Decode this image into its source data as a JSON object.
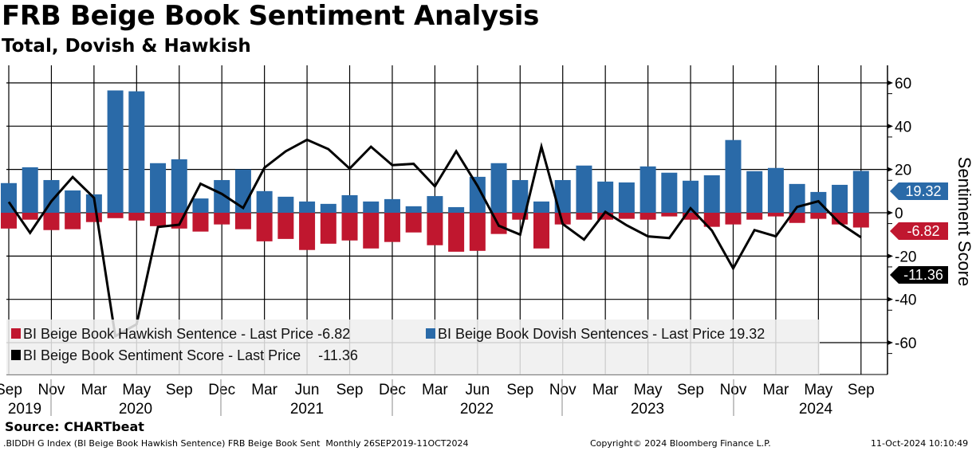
{
  "header": {
    "title": "FRB Beige Book Sentiment Analysis",
    "subtitle": "Total, Dovish & Hawkish"
  },
  "chart_data": {
    "type": "bar",
    "title": "FRB Beige Book Sentiment Analysis",
    "subtitle": "Total, Dovish & Hawkish",
    "ylabel": "Sentiment Score",
    "ylim": [
      -75,
      68
    ],
    "yticks": [
      60,
      40,
      20,
      0,
      -20,
      -40,
      -60
    ],
    "grid": true,
    "legend_position": "bottom-left",
    "x_tick_labels": [
      "Sep",
      "Nov",
      "Mar",
      "May",
      "Sep",
      "Dec",
      "Mar",
      "Jun",
      "Sep",
      "Dec",
      "Mar",
      "Jun",
      "Sep",
      "Nov",
      "Mar",
      "May",
      "Sep",
      "Nov",
      "Mar",
      "May",
      "Sep"
    ],
    "year_labels": [
      "2019",
      "2020",
      "2021",
      "2022",
      "2023",
      "2024"
    ],
    "series": [
      {
        "name": "BI Beige Book Hawkish Sentence - Last Price -6.82",
        "type": "bar",
        "color": "#c0172f",
        "last": "-6.82",
        "values": [
          -7.3,
          -3.2,
          -8.0,
          -7.6,
          -4.3,
          -2.5,
          -3.6,
          -6.2,
          -7.3,
          -8.7,
          -5.4,
          -7.6,
          -13.2,
          -12.1,
          -17.2,
          -14.3,
          -12.8,
          -16.5,
          -13.5,
          -9.1,
          -15.0,
          -18.0,
          -17.6,
          -9.8,
          -3.2,
          -16.5,
          -5.4,
          -3.2,
          -3.2,
          -2.8,
          -3.2,
          -1.7,
          -3.2,
          -6.5,
          -5.4,
          -3.2,
          -1.7,
          -4.7,
          -2.8,
          -5.4,
          -6.82
        ]
      },
      {
        "name": "BI Beige Book Dovish Sentences - Last Price 19.32",
        "type": "bar",
        "color": "#2a6aa8",
        "last": "19.32",
        "values": [
          13.7,
          21.0,
          15.1,
          10.3,
          8.5,
          56.5,
          56.1,
          22.9,
          24.7,
          6.6,
          15.1,
          20.0,
          10.0,
          7.4,
          5.2,
          4.1,
          8.1,
          5.2,
          6.3,
          3.0,
          7.7,
          2.6,
          16.6,
          22.9,
          15.1,
          5.2,
          15.1,
          21.8,
          14.4,
          14.0,
          21.4,
          18.5,
          14.8,
          17.3,
          33.6,
          19.2,
          20.7,
          13.3,
          9.6,
          12.9,
          19.32
        ]
      },
      {
        "name": "BI Beige Book Sentiment Score - Last Price",
        "type": "line",
        "color": "#000000",
        "last": "-11.36",
        "values": [
          5.0,
          -9.3,
          5.3,
          16.5,
          6.9,
          -57.0,
          -51.5,
          -6.6,
          -5.5,
          13.4,
          8.7,
          2.2,
          20.8,
          28.4,
          33.7,
          29.4,
          20.4,
          30.5,
          22.0,
          22.6,
          12.2,
          28.4,
          12.4,
          -6.0,
          -10.1,
          30.5,
          -5.2,
          -12.4,
          0.4,
          -5.8,
          -10.9,
          -11.7,
          2.1,
          -8.2,
          -25.7,
          -8.0,
          -10.9,
          2.7,
          5.3,
          -4.8,
          -11.36
        ]
      }
    ]
  },
  "footer": {
    "source": "Source: CHARTbeat",
    "ticker": ".BIDDH G Index (BI Beige Book Hawkish Sentence) FRB Beige Book Sent  Monthly 26SEP2019-11OCT2024",
    "copyright": "Copyright© 2024 Bloomberg Finance L.P.",
    "timestamp": "11-Oct-2024 10:10:49"
  }
}
